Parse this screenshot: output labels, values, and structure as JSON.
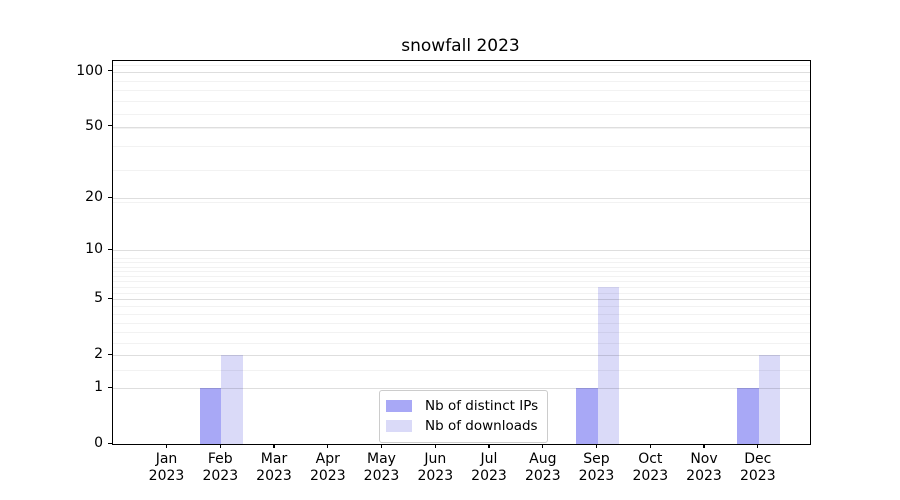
{
  "chart_data": {
    "type": "bar",
    "title": "snowfall 2023",
    "categories": [
      {
        "month": "Jan",
        "year": "2023"
      },
      {
        "month": "Feb",
        "year": "2023"
      },
      {
        "month": "Mar",
        "year": "2023"
      },
      {
        "month": "Apr",
        "year": "2023"
      },
      {
        "month": "May",
        "year": "2023"
      },
      {
        "month": "Jun",
        "year": "2023"
      },
      {
        "month": "Jul",
        "year": "2023"
      },
      {
        "month": "Aug",
        "year": "2023"
      },
      {
        "month": "Sep",
        "year": "2023"
      },
      {
        "month": "Oct",
        "year": "2023"
      },
      {
        "month": "Nov",
        "year": "2023"
      },
      {
        "month": "Dec",
        "year": "2023"
      }
    ],
    "series": [
      {
        "name": "Nb of distinct IPs",
        "color": "#a8a8f6",
        "values": [
          0,
          1,
          0,
          0,
          0,
          0,
          0,
          0,
          1,
          0,
          0,
          1
        ]
      },
      {
        "name": "Nb of downloads",
        "color": "#dadaf8",
        "values": [
          0,
          2,
          0,
          0,
          0,
          0,
          0,
          0,
          6,
          0,
          0,
          2
        ]
      }
    ],
    "y_axis": {
      "scale": "log10(value+1)",
      "major_ticks": [
        0,
        1,
        2,
        5,
        10,
        20,
        50,
        100
      ],
      "minor_values": [
        1.5,
        2.5,
        3,
        3.5,
        4,
        4.5,
        5.5,
        6,
        6.5,
        7,
        7.5,
        8,
        8.5,
        9,
        19,
        29,
        39,
        49,
        59,
        69,
        79,
        89,
        109
      ],
      "ylim": [
        0,
        114
      ]
    },
    "x_axis": {
      "tick_label_lines": 2
    },
    "legend": {
      "position": "lower center",
      "entries": [
        "Nb of distinct IPs",
        "Nb of downloads"
      ]
    },
    "grid": true,
    "background": "#ffffff"
  }
}
